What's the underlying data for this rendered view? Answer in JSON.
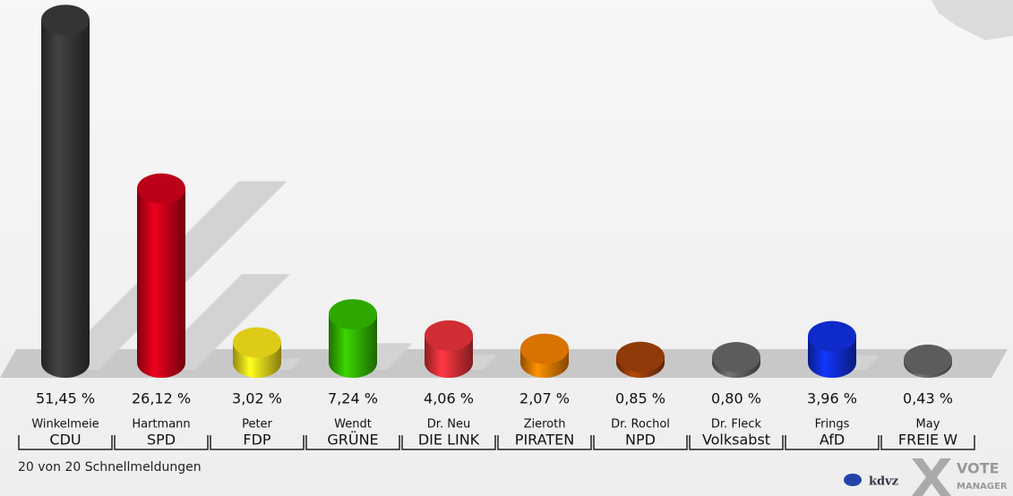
{
  "chart_data": {
    "type": "bar",
    "candidates": [
      "Winkelmeie",
      "Hartmann",
      "Peter",
      "Wendt",
      "Dr. Neu",
      "Zieroth",
      "Dr. Rochol",
      "Dr. Fleck",
      "Frings",
      "May"
    ],
    "categories": [
      "CDU",
      "SPD",
      "FDP",
      "GRÜNE",
      "DIE LINK",
      "PIRATEN",
      "NPD",
      "Volksabst",
      "AfD",
      "FREIE W"
    ],
    "values": [
      51.45,
      26.12,
      3.02,
      7.24,
      4.06,
      2.07,
      0.85,
      0.8,
      3.96,
      0.43
    ],
    "value_labels": [
      "51,45 %",
      "26,12 %",
      "3,02 %",
      "7,24 %",
      "4,06 %",
      "2,07 %",
      "0,85 %",
      "0,80 %",
      "3,96 %",
      "0,43 %"
    ],
    "colors": [
      "#3a3a3a",
      "#d0001a",
      "#f5e21b",
      "#33bb00",
      "#e8323a",
      "#f08000",
      "#a0400a",
      "#666666",
      "#1030e0",
      "#666666"
    ],
    "footer": "20 von 20 Schnellmeldungen",
    "brand": "kdvz",
    "brand2": [
      "VOTE",
      "MANAGER"
    ]
  }
}
